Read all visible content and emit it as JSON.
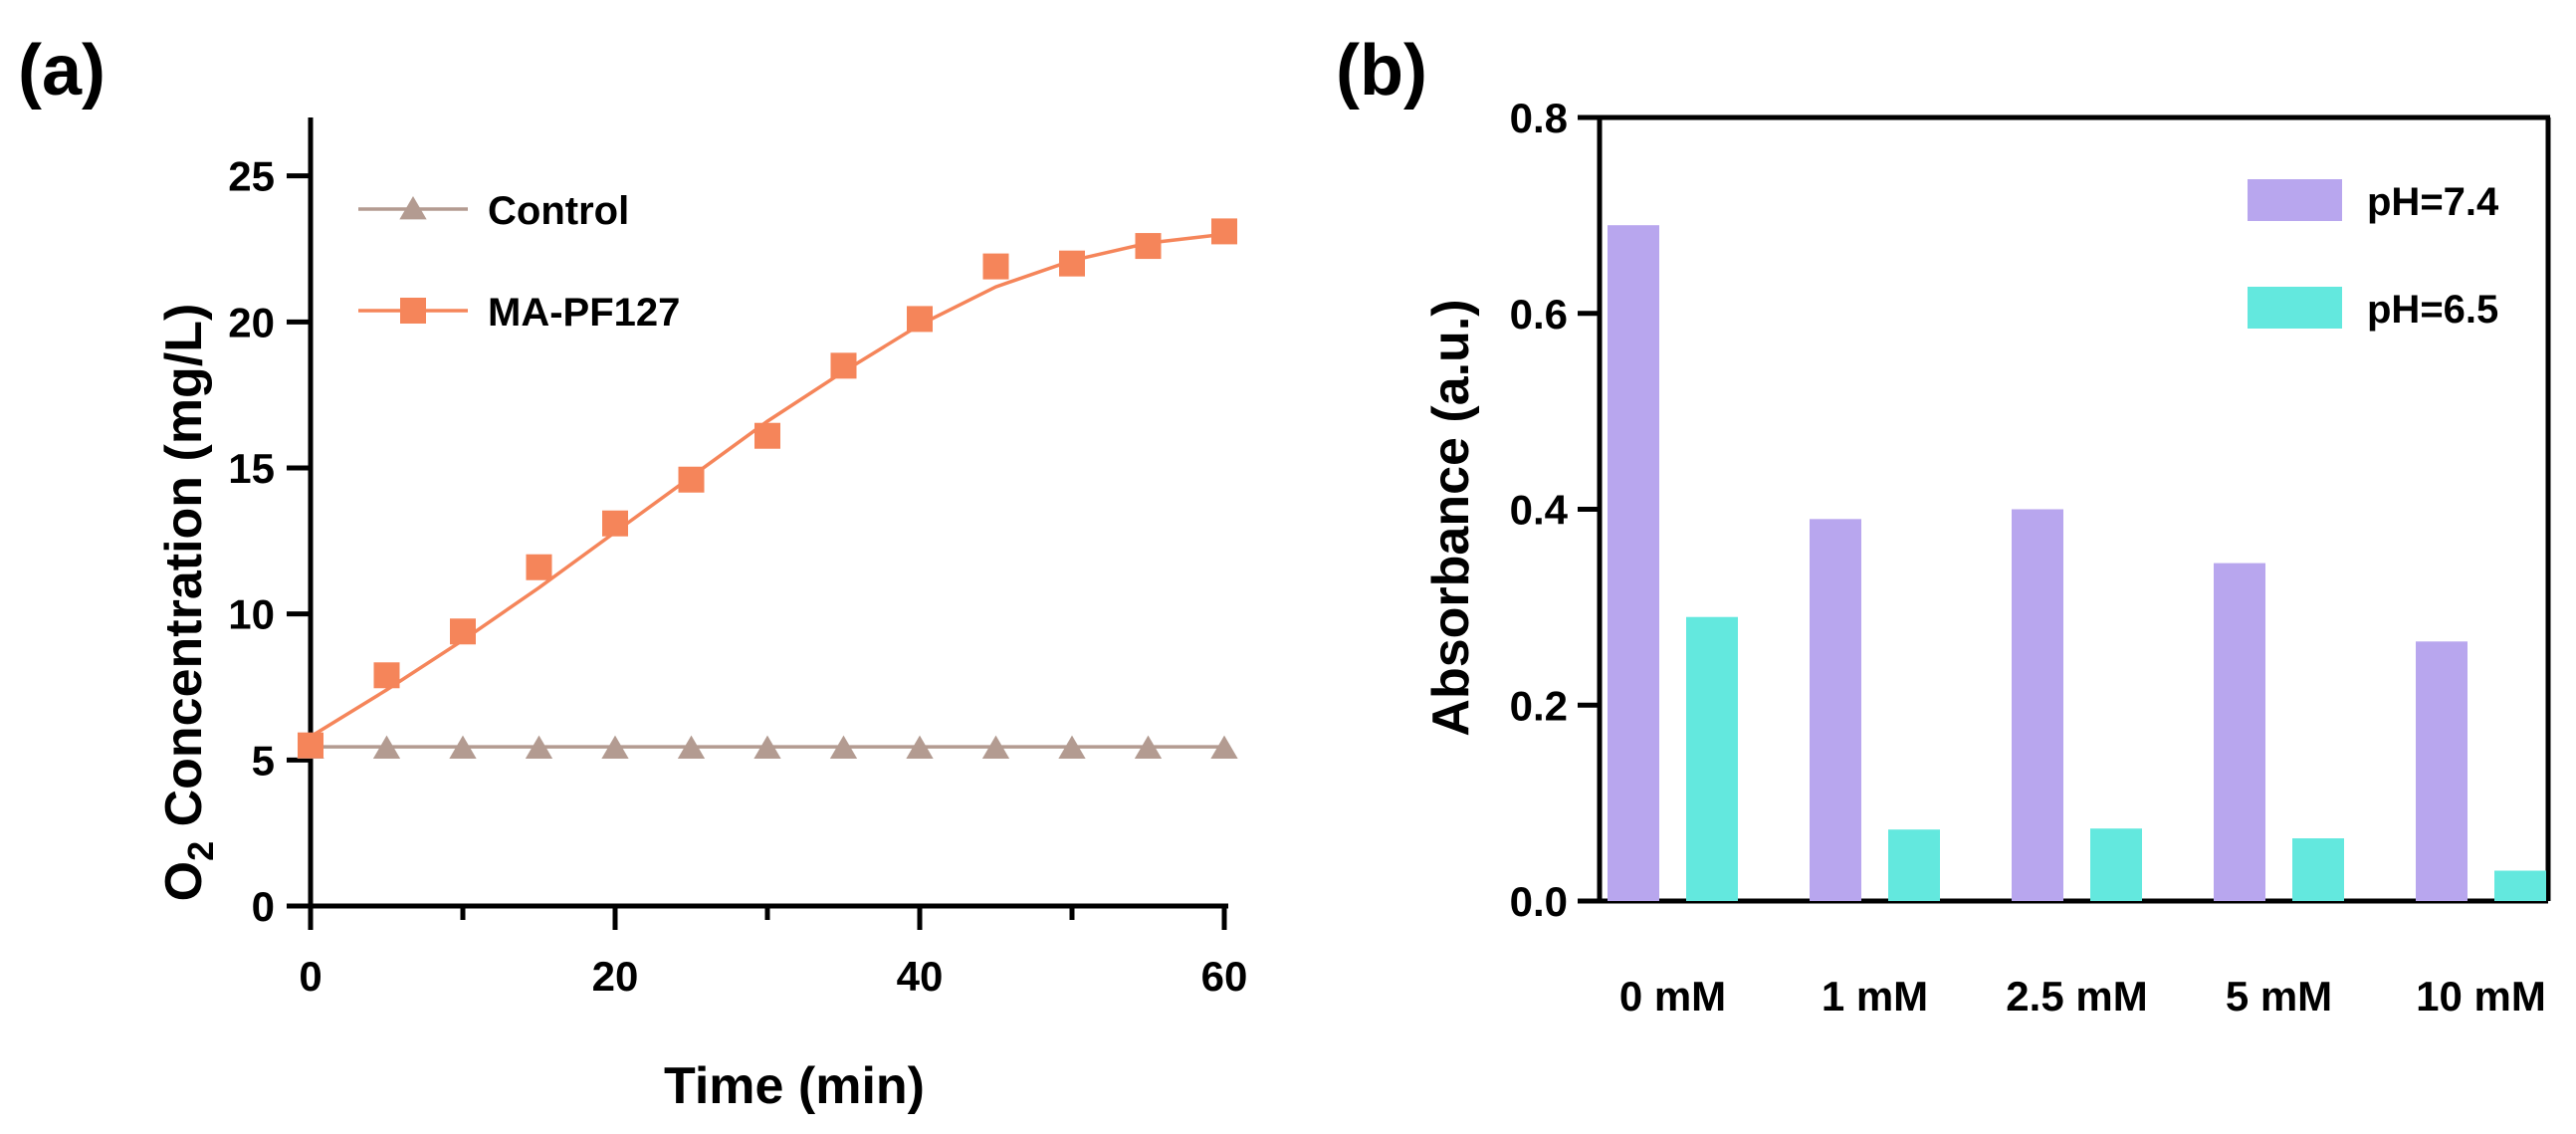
{
  "chart_data": [
    {
      "panel": "(a)",
      "type": "line",
      "xlabel": "Time (min)",
      "ylabel_prefix": "O",
      "ylabel_sub": "2",
      "ylabel_suffix": " Concentration (mg/L)",
      "xlim": [
        0,
        60
      ],
      "ylim": [
        0,
        27
      ],
      "xticks": [
        0,
        20,
        40,
        60
      ],
      "yticks": [
        0,
        5,
        10,
        15,
        20,
        25
      ],
      "grid": false,
      "legend_position": "top-left",
      "series": [
        {
          "name": "Control",
          "marker": "triangle",
          "color": "#b39b91",
          "x": [
            0,
            5,
            10,
            15,
            20,
            25,
            30,
            35,
            40,
            45,
            50,
            55,
            60
          ],
          "y": [
            5.4,
            5.4,
            5.4,
            5.4,
            5.4,
            5.4,
            5.4,
            5.4,
            5.4,
            5.4,
            5.4,
            5.4,
            5.4
          ],
          "fit_y": [
            5.45,
            5.45,
            5.45,
            5.45,
            5.45,
            5.45,
            5.45,
            5.45,
            5.45,
            5.45,
            5.45,
            5.45,
            5.45
          ]
        },
        {
          "name": "MA-PF127",
          "marker": "square",
          "color": "#f5855a",
          "x": [
            0,
            5,
            10,
            15,
            20,
            25,
            30,
            35,
            40,
            45,
            50,
            55,
            60
          ],
          "y": [
            5.5,
            7.9,
            9.4,
            11.6,
            13.1,
            14.6,
            16.1,
            18.5,
            20.1,
            21.9,
            22.0,
            22.6,
            23.1
          ],
          "fit_y": [
            5.8,
            7.4,
            9.1,
            10.9,
            12.8,
            14.7,
            16.6,
            18.3,
            19.9,
            21.2,
            22.1,
            22.7,
            23.0
          ]
        }
      ]
    },
    {
      "panel": "(b)",
      "type": "bar",
      "xlabel": "",
      "ylabel": "Absorbance (a.u.)",
      "ylim": [
        0,
        0.8
      ],
      "yticks": [
        "0.0",
        "0.2",
        "0.4",
        "0.6",
        "0.8"
      ],
      "grid": false,
      "legend_position": "top-right",
      "categories": [
        "0 mM",
        "1 mM",
        "2.5 mM",
        "5 mM",
        "10 mM"
      ],
      "series": [
        {
          "name": "pH=7.4",
          "color": "#b8a6ee",
          "values": [
            0.69,
            0.39,
            0.4,
            0.345,
            0.265
          ]
        },
        {
          "name": "pH=6.5",
          "color": "#63e8de",
          "values": [
            0.29,
            0.073,
            0.074,
            0.064,
            0.031
          ]
        }
      ]
    }
  ]
}
